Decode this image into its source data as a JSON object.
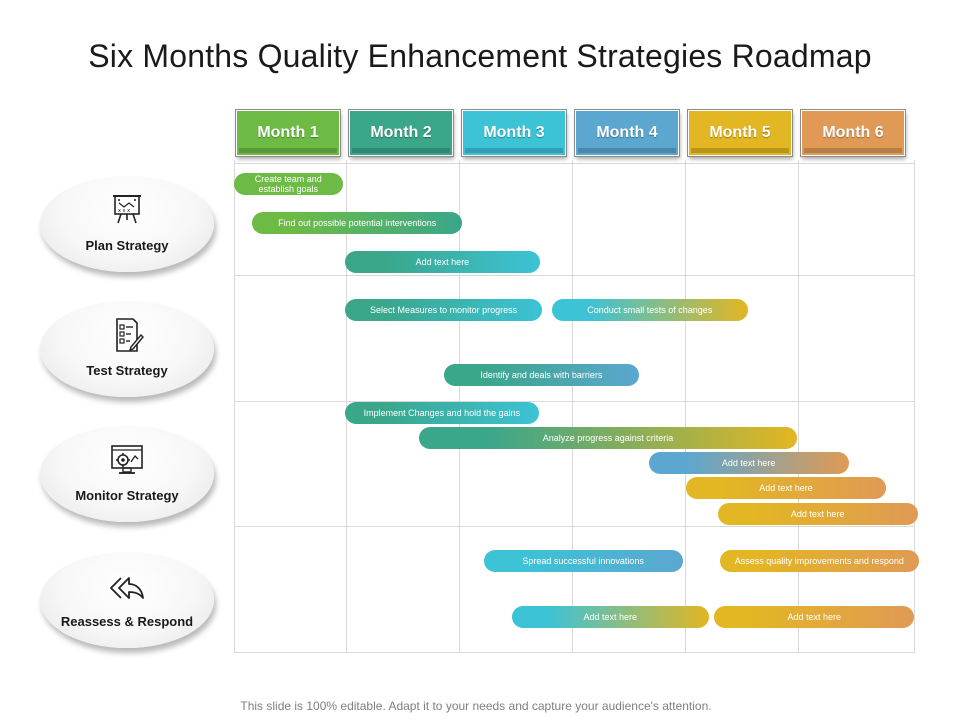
{
  "title": "Six Months Quality Enhancement Strategies Roadmap",
  "months": [
    {
      "label": "Month 1",
      "color": "#6dbb45"
    },
    {
      "label": "Month 2",
      "color": "#3aa68a"
    },
    {
      "label": "Month 3",
      "color": "#3cc3d6"
    },
    {
      "label": "Month 4",
      "color": "#5ba7cf"
    },
    {
      "label": "Month 5",
      "color": "#e3b623"
    },
    {
      "label": "Month 6",
      "color": "#e09a55"
    }
  ],
  "strategies": [
    {
      "label": "Plan Strategy",
      "icon": "presentation-board-icon"
    },
    {
      "label": "Test Strategy",
      "icon": "checklist-pen-icon"
    },
    {
      "label": "Monitor Strategy",
      "icon": "monitor-gear-icon"
    },
    {
      "label": "Reassess  & Respond",
      "icon": "double-reply-arrow-icon"
    }
  ],
  "tasks": [
    {
      "label": "Create team and establish goals",
      "start_month": 1.0,
      "end_month": 1.96,
      "colors": [
        "#6dbb45",
        "#6dbb45"
      ]
    },
    {
      "label": "Find out possible potential interventions",
      "start_month": 1.16,
      "end_month": 3.02,
      "colors": [
        "#6dbb45",
        "#3aa68a"
      ]
    },
    {
      "label": "Add text here",
      "start_month": 1.98,
      "end_month": 3.71,
      "colors": [
        "#3aa68a",
        "#3cc3d6"
      ]
    },
    {
      "label": "Select Measures  to monitor progress",
      "start_month": 1.98,
      "end_month": 3.73,
      "colors": [
        "#3aa68a",
        "#3cc3d6"
      ]
    },
    {
      "label": "Conduct small tests of changes",
      "start_month": 3.81,
      "end_month": 5.55,
      "colors": [
        "#3cc3d6",
        "#e3b623"
      ]
    },
    {
      "label": "Identify and deals with barriers",
      "start_month": 2.86,
      "end_month": 4.58,
      "colors": [
        "#3aa68a",
        "#5ba7cf"
      ]
    },
    {
      "label": "Implement Changes and hold the gains",
      "start_month": 1.98,
      "end_month": 3.7,
      "colors": [
        "#3aa68a",
        "#3cc3d6"
      ]
    },
    {
      "label": "Analyze progress against criteria",
      "start_month": 2.64,
      "end_month": 5.98,
      "colors": [
        "#3aa68a",
        "#e3b623"
      ]
    },
    {
      "label": "Add text here",
      "start_month": 4.67,
      "end_month": 6.44,
      "colors": [
        "#5ba7cf",
        "#e09a55"
      ]
    },
    {
      "label": "Add text here",
      "start_month": 5.0,
      "end_month": 6.77,
      "colors": [
        "#e3b623",
        "#e09a55"
      ]
    },
    {
      "label": "Add text here",
      "start_month": 5.28,
      "end_month": 7.05,
      "colors": [
        "#e3b623",
        "#e09a55"
      ]
    },
    {
      "label": "Spread successful innovations",
      "start_month": 3.21,
      "end_month": 4.97,
      "colors": [
        "#3cc3d6",
        "#5ba7cf"
      ]
    },
    {
      "label": "Assess quality improvements and respond",
      "start_month": 5.3,
      "end_month": 7.06,
      "colors": [
        "#e3b623",
        "#e09a55"
      ]
    },
    {
      "label": "Add text here",
      "start_month": 3.46,
      "end_month": 5.2,
      "colors": [
        "#3cc3d6",
        "#e3b623"
      ]
    },
    {
      "label": "Add text here",
      "start_month": 5.25,
      "end_month": 7.02,
      "colors": [
        "#e3b623",
        "#e09a55"
      ]
    }
  ],
  "footer": "This slide is 100% editable. Adapt it to your needs and capture your audience's attention."
}
